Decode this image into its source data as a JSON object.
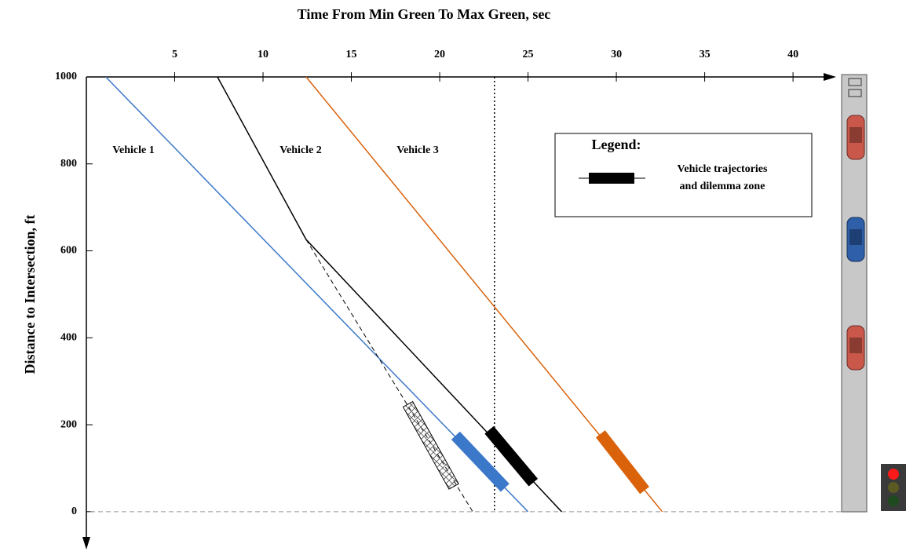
{
  "chart_data": {
    "type": "line",
    "title": "Time From Min Green To Max Green, sec",
    "y_label": "Distance to Intersection, ft",
    "xlim": [
      0,
      42.44
    ],
    "xticks": [
      5,
      10,
      15,
      20,
      25,
      30,
      35,
      40
    ],
    "ylim": [
      -87,
      1000
    ],
    "yticks": [
      0,
      200,
      400,
      600,
      800,
      1000
    ],
    "vline": 23.1,
    "series": [
      {
        "name": "Vehicle 1",
        "color": "#3b78c9",
        "x": [
          1.1,
          25.0
        ],
        "values": [
          1000,
          0
        ],
        "dilemma_zone": {
          "x": [
            20.9,
            23.7
          ],
          "values": [
            175,
            55
          ]
        }
      },
      {
        "name": "Vehicle 2",
        "color": "#000000",
        "x": [
          7.42,
          12.44,
          26.9
        ],
        "values": [
          1000,
          626,
          0
        ],
        "dilemma_zone": {
          "x": [
            22.8,
            25.3
          ],
          "values": [
            188,
            67
          ]
        },
        "projection": {
          "x": [
            12.44,
            21.87
          ],
          "values": [
            626,
            0
          ]
        },
        "projected_zone": {
          "x": [
            18.2,
            20.8
          ],
          "values": [
            247,
            58
          ]
        }
      },
      {
        "name": "Vehicle 3",
        "color": "#d9620b",
        "x": [
          12.44,
          32.6
        ],
        "values": [
          1000,
          0
        ],
        "dilemma_zone": {
          "x": [
            29.1,
            31.6
          ],
          "values": [
            179,
            49
          ]
        }
      }
    ],
    "legend": {
      "title": "Legend:",
      "text": [
        "Vehicle trajectories",
        "and dilemma zone"
      ]
    }
  }
}
